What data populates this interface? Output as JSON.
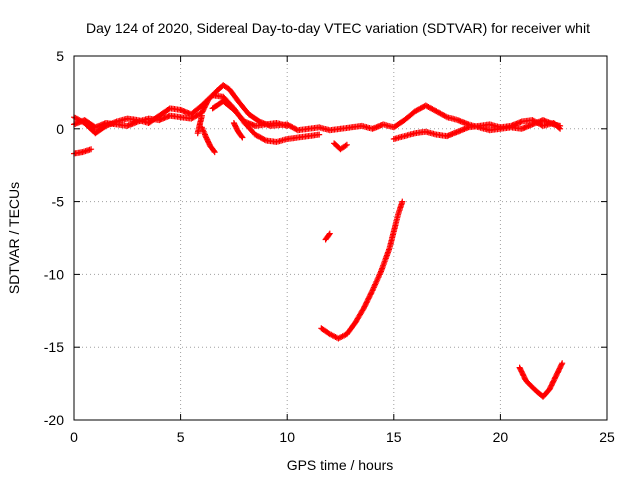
{
  "chart_data": {
    "type": "scatter",
    "title": "Day 124 of 2020, Sidereal Day-to-day VTEC variation (SDTVAR) for receiver whit",
    "xlabel": "GPS time / hours",
    "ylabel": "SDTVAR / TECUs",
    "xlim": [
      0,
      25
    ],
    "ylim": [
      -20,
      5
    ],
    "xticks": [
      0,
      5,
      10,
      15,
      20,
      25
    ],
    "yticks": [
      5,
      0,
      -5,
      -10,
      -15,
      -20
    ],
    "grid": true,
    "marker": "plus",
    "series": [
      {
        "name": "SDTVAR",
        "color": "#ff0000",
        "tracks": [
          [
            [
              0.0,
              0.3
            ],
            [
              0.5,
              0.6
            ],
            [
              1.0,
              0.1
            ],
            [
              1.5,
              0.4
            ],
            [
              2.0,
              0.3
            ],
            [
              2.5,
              0.2
            ],
            [
              3.0,
              0.5
            ],
            [
              3.5,
              0.7
            ],
            [
              4.0,
              0.6
            ],
            [
              4.5,
              0.9
            ],
            [
              5.0,
              0.8
            ],
            [
              5.5,
              0.7
            ],
            [
              6.0,
              1.1
            ],
            [
              6.3,
              2.0
            ],
            [
              6.7,
              2.6
            ],
            [
              7.0,
              3.0
            ],
            [
              7.3,
              2.7
            ],
            [
              7.7,
              1.9
            ],
            [
              8.2,
              1.0
            ],
            [
              8.7,
              0.5
            ],
            [
              9.2,
              0.2
            ],
            [
              10.0,
              0.3
            ],
            [
              10.5,
              -0.1
            ],
            [
              11.0,
              0.0
            ],
            [
              11.5,
              0.1
            ],
            [
              12.0,
              -0.1
            ],
            [
              12.5,
              0.0
            ],
            [
              13.0,
              0.1
            ],
            [
              13.5,
              0.2
            ],
            [
              14.0,
              0.0
            ],
            [
              14.5,
              0.3
            ],
            [
              15.0,
              0.1
            ],
            [
              15.5,
              0.6
            ],
            [
              16.0,
              1.2
            ],
            [
              16.5,
              1.6
            ],
            [
              17.0,
              1.2
            ],
            [
              17.5,
              0.8
            ],
            [
              18.0,
              0.6
            ],
            [
              18.5,
              0.3
            ],
            [
              19.0,
              0.1
            ],
            [
              19.5,
              -0.1
            ],
            [
              20.0,
              0.0
            ],
            [
              20.5,
              0.1
            ],
            [
              21.0,
              0.0
            ],
            [
              21.5,
              0.3
            ],
            [
              22.0,
              0.6
            ],
            [
              22.5,
              0.3
            ],
            [
              22.8,
              0.2
            ]
          ],
          [
            [
              0.0,
              0.8
            ],
            [
              0.5,
              0.4
            ],
            [
              1.0,
              -0.3
            ],
            [
              1.5,
              0.2
            ],
            [
              2.0,
              0.5
            ],
            [
              2.5,
              0.7
            ],
            [
              3.0,
              0.6
            ],
            [
              3.5,
              0.4
            ],
            [
              4.0,
              0.9
            ],
            [
              4.5,
              1.4
            ],
            [
              5.0,
              1.3
            ],
            [
              5.5,
              1.0
            ],
            [
              6.0,
              1.6
            ],
            [
              6.5,
              2.3
            ],
            [
              7.0,
              2.2
            ],
            [
              7.5,
              1.4
            ],
            [
              8.0,
              0.4
            ],
            [
              8.5,
              -0.4
            ],
            [
              9.0,
              -0.8
            ],
            [
              9.5,
              -0.9
            ],
            [
              10.0,
              -0.7
            ],
            [
              10.5,
              -0.6
            ],
            [
              11.0,
              -0.5
            ],
            [
              11.5,
              -0.4
            ]
          ],
          [
            [
              6.5,
              1.4
            ],
            [
              7.0,
              1.9
            ],
            [
              7.5,
              1.3
            ],
            [
              8.0,
              0.5
            ],
            [
              8.5,
              0.2
            ],
            [
              9.0,
              0.3
            ],
            [
              9.5,
              0.4
            ],
            [
              10.0,
              0.2
            ]
          ],
          [
            [
              15.0,
              -0.7
            ],
            [
              15.5,
              -0.5
            ],
            [
              16.0,
              -0.3
            ],
            [
              16.5,
              -0.2
            ],
            [
              17.0,
              -0.4
            ],
            [
              17.5,
              -0.5
            ],
            [
              18.0,
              -0.2
            ],
            [
              18.5,
              0.1
            ],
            [
              19.0,
              0.2
            ],
            [
              19.5,
              0.3
            ],
            [
              20.0,
              0.1
            ],
            [
              20.5,
              0.2
            ],
            [
              21.0,
              0.5
            ],
            [
              21.5,
              0.6
            ],
            [
              22.0,
              0.2
            ],
            [
              22.5,
              0.4
            ],
            [
              22.8,
              0.0
            ]
          ],
          [
            [
              0.0,
              -1.7
            ],
            [
              0.4,
              -1.6
            ],
            [
              0.8,
              -1.4
            ]
          ],
          [
            [
              6.0,
              0.1
            ],
            [
              6.2,
              -0.6
            ],
            [
              6.4,
              -1.2
            ],
            [
              6.6,
              -1.6
            ]
          ],
          [
            [
              5.8,
              -0.3
            ],
            [
              5.9,
              0.3
            ],
            [
              6.0,
              0.9
            ]
          ],
          [
            [
              7.5,
              0.4
            ],
            [
              7.7,
              -0.2
            ],
            [
              7.9,
              -0.6
            ]
          ],
          [
            [
              12.2,
              -1.0
            ],
            [
              12.5,
              -1.4
            ],
            [
              12.8,
              -1.1
            ]
          ],
          [
            [
              11.8,
              -7.6
            ],
            [
              12.0,
              -7.2
            ]
          ],
          [
            [
              11.6,
              -13.7
            ],
            [
              12.0,
              -14.1
            ],
            [
              12.4,
              -14.4
            ],
            [
              12.8,
              -14.1
            ],
            [
              13.2,
              -13.3
            ],
            [
              13.6,
              -12.3
            ],
            [
              14.0,
              -11.1
            ],
            [
              14.4,
              -9.8
            ],
            [
              14.8,
              -8.2
            ],
            [
              15.2,
              -5.9
            ],
            [
              15.4,
              -5.0
            ]
          ],
          [
            [
              20.9,
              -16.4
            ],
            [
              21.2,
              -17.3
            ],
            [
              21.6,
              -17.9
            ],
            [
              22.0,
              -18.4
            ],
            [
              22.3,
              -17.9
            ],
            [
              22.6,
              -17.0
            ],
            [
              22.9,
              -16.1
            ]
          ]
        ]
      }
    ]
  }
}
